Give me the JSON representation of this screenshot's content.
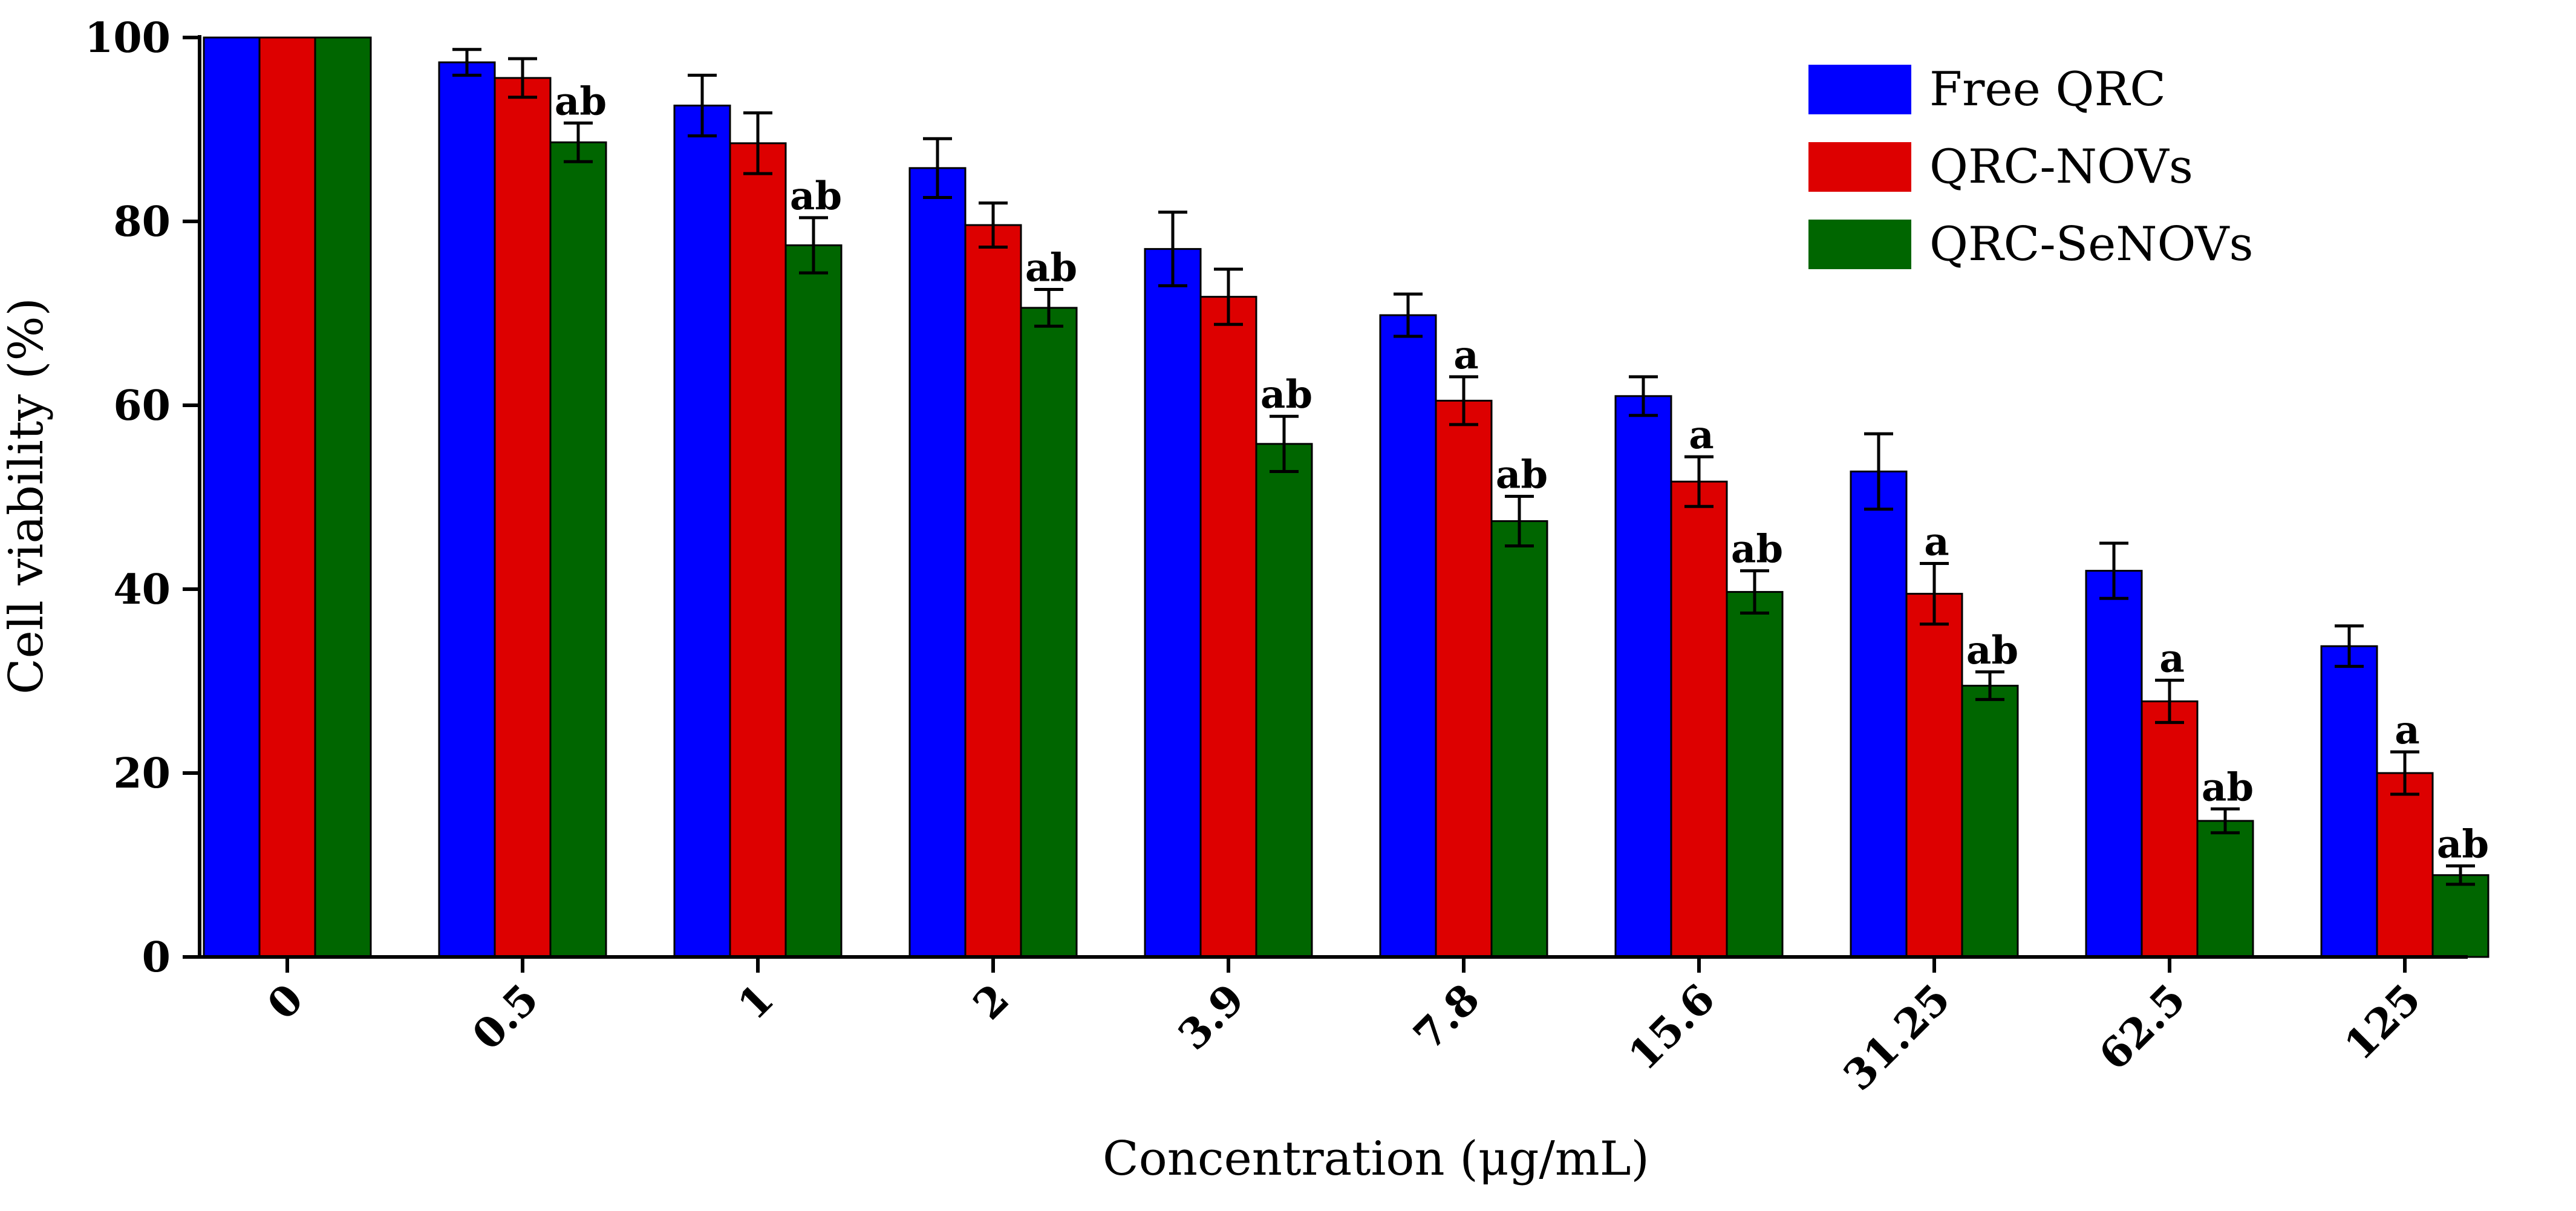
{
  "chart_data": {
    "type": "bar",
    "title": "",
    "xlabel": "Concentration (μg/mL)",
    "ylabel": "Cell viability (%)",
    "ylim": [
      0,
      100
    ],
    "yticks": [
      "0",
      "20",
      "40",
      "60",
      "80",
      "100"
    ],
    "categories": [
      "0",
      "0.5",
      "1",
      "2",
      "3.9",
      "7.8",
      "15.6",
      "31.25",
      "62.5",
      "125"
    ],
    "legend_position": "top-right",
    "series": [
      {
        "name": "Free QRC",
        "color": "#0000ff",
        "values": [
          100,
          97.3,
          92.6,
          85.8,
          77.0,
          69.8,
          61.0,
          52.8,
          42.0,
          33.8
        ],
        "errors": [
          0,
          1.4,
          3.3,
          3.2,
          4.0,
          2.3,
          2.1,
          4.1,
          3.0,
          2.2
        ],
        "annotations": [
          "",
          "",
          "",
          "",
          "",
          "",
          "",
          "",
          "",
          ""
        ]
      },
      {
        "name": "QRC-NOVs",
        "color": "#dd0000",
        "values": [
          100,
          95.6,
          88.5,
          79.6,
          71.8,
          60.5,
          51.7,
          39.5,
          27.8,
          20.0
        ],
        "errors": [
          0,
          2.1,
          3.3,
          2.4,
          3.0,
          2.6,
          2.7,
          3.3,
          2.3,
          2.3
        ],
        "annotations": [
          "",
          "",
          "",
          "",
          "",
          "a",
          "a",
          "a",
          "a",
          "a"
        ]
      },
      {
        "name": "QRC-SeNOVs",
        "color": "#006600",
        "values": [
          100,
          88.6,
          77.4,
          70.6,
          55.8,
          47.4,
          39.7,
          29.5,
          14.8,
          8.9
        ],
        "errors": [
          0,
          2.1,
          3.0,
          2.0,
          3.0,
          2.7,
          2.3,
          1.5,
          1.3,
          1.0
        ],
        "annotations": [
          "",
          "ab",
          "ab",
          "ab",
          "ab",
          "ab",
          "ab",
          "ab",
          "ab",
          "ab"
        ]
      }
    ]
  }
}
